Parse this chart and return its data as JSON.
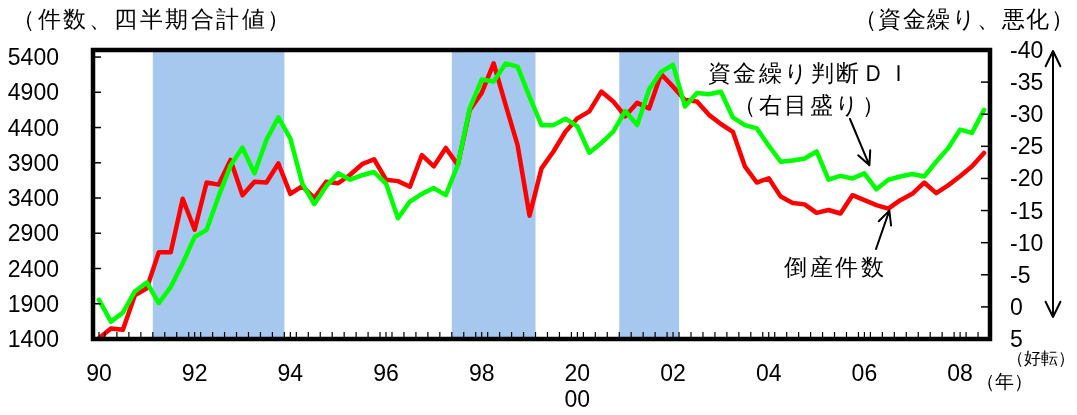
{
  "chart_data": {
    "type": "line",
    "ylabel": "（件数、四半期合計値）",
    "y2label": "（資金繰り、悪化）",
    "xlabel": "（年）",
    "annotations": [
      "（好転）"
    ],
    "x": [
      1990,
      1990.25,
      1990.5,
      1990.75,
      1991,
      1991.25,
      1991.5,
      1991.75,
      1992,
      1992.25,
      1992.5,
      1992.75,
      1993,
      1993.25,
      1993.5,
      1993.75,
      1994,
      1994.25,
      1994.5,
      1994.75,
      1995,
      1995.25,
      1995.5,
      1995.75,
      1996,
      1996.25,
      1996.5,
      1996.75,
      1997,
      1997.25,
      1997.5,
      1997.75,
      1998,
      1998.25,
      1998.5,
      1998.75,
      1999,
      1999.25,
      1999.5,
      1999.75,
      2000,
      2000.25,
      2000.5,
      2000.75,
      2001,
      2001.25,
      2001.5,
      2001.75,
      2002,
      2002.25,
      2002.5,
      2002.75,
      2003,
      2003.25,
      2003.5,
      2003.75,
      2004,
      2004.25,
      2004.5,
      2004.75,
      2005,
      2005.25,
      2005.5,
      2005.75,
      2006,
      2006.25,
      2006.5,
      2006.75,
      2007,
      2007.25,
      2007.5,
      2007.75,
      2008,
      2008.25,
      2008.5
    ],
    "series": [
      {
        "name": "倒産件数",
        "color": "#ff0000",
        "values": [
          1410,
          1550,
          1530,
          2020,
          2120,
          2630,
          2630,
          3390,
          2950,
          3620,
          3590,
          3940,
          3440,
          3630,
          3620,
          3890,
          3460,
          3570,
          3400,
          3630,
          3610,
          3730,
          3880,
          3950,
          3660,
          3640,
          3560,
          4010,
          3850,
          4110,
          3870,
          4650,
          4890,
          5310,
          4720,
          4150,
          3150,
          3820,
          4060,
          4340,
          4530,
          4630,
          4910,
          4770,
          4560,
          4750,
          4670,
          5160,
          4980,
          4790,
          4770,
          4580,
          4450,
          4340,
          3850,
          3620,
          3680,
          3420,
          3330,
          3310,
          3190,
          3230,
          3180,
          3440,
          3370,
          3300,
          3250,
          3370,
          3460,
          3620,
          3470,
          3580,
          3710,
          3850,
          4040
        ]
      },
      {
        "name": "資金繰り判断ＤＩ（右目盛り）",
        "color": "#00ff00",
        "axis": "y2",
        "values": [
          -1.1,
          2.3,
          0.9,
          -2.4,
          -3.8,
          -0.6,
          -3.1,
          -6.8,
          -10.9,
          -12.0,
          -17.2,
          -22.0,
          -24.8,
          -20.8,
          -26.0,
          -29.5,
          -26.2,
          -19.2,
          -16.0,
          -18.8,
          -20.8,
          -19.8,
          -20.5,
          -21.0,
          -19.2,
          -13.8,
          -16.4,
          -17.6,
          -18.5,
          -17.4,
          -22.1,
          -30.9,
          -35.4,
          -35.1,
          -37.9,
          -37.4,
          -32.7,
          -28.3,
          -28.3,
          -29.3,
          -28.1,
          -24.0,
          -25.5,
          -27.3,
          -30.5,
          -28.3,
          -33.9,
          -36.6,
          -37.7,
          -31.2,
          -33.3,
          -33.1,
          -33.5,
          -29.5,
          -28.3,
          -27.8,
          -25.1,
          -22.6,
          -22.8,
          -23.1,
          -24.2,
          -19.8,
          -20.4,
          -20.0,
          -20.8,
          -18.3,
          -19.8,
          -20.3,
          -20.7,
          -20.3,
          -22.6,
          -24.7,
          -27.6,
          -27.1,
          -30.7
        ]
      }
    ],
    "xlim": [
      1989.875,
      2008.625
    ],
    "xticks": [
      {
        "value": 1990,
        "label": "90"
      },
      {
        "value": 1992,
        "label": "92"
      },
      {
        "value": 1994,
        "label": "94"
      },
      {
        "value": 1996,
        "label": "96"
      },
      {
        "value": 1998,
        "label": "98"
      },
      {
        "value": 2000,
        "label": "20\n00"
      },
      {
        "value": 2002,
        "label": "02"
      },
      {
        "value": 2004,
        "label": "04"
      },
      {
        "value": 2006,
        "label": "06"
      },
      {
        "value": 2008,
        "label": "08"
      },
      {
        "value": 1990.125,
        "label": null
      },
      {
        "value": 1990.375,
        "label": null
      },
      {
        "value": 1990.625,
        "label": null
      },
      {
        "value": 1990.875,
        "label": null
      },
      {
        "value": 1991.125,
        "label": null
      },
      {
        "value": 1991.375,
        "label": null
      },
      {
        "value": 1991.625,
        "label": null
      },
      {
        "value": 1991.875,
        "label": null
      },
      {
        "value": 1992.125,
        "label": null
      },
      {
        "value": 1992.375,
        "label": null
      },
      {
        "value": 1992.625,
        "label": null
      },
      {
        "value": 1992.875,
        "label": null
      },
      {
        "value": 1993.125,
        "label": null
      },
      {
        "value": 1993.375,
        "label": null
      },
      {
        "value": 1993.625,
        "label": null
      },
      {
        "value": 1993.875,
        "label": null
      },
      {
        "value": 1994.125,
        "label": null
      },
      {
        "value": 1994.375,
        "label": null
      },
      {
        "value": 1994.625,
        "label": null
      },
      {
        "value": 1994.875,
        "label": null
      },
      {
        "value": 1995.125,
        "label": null
      },
      {
        "value": 1995.375,
        "label": null
      },
      {
        "value": 1995.625,
        "label": null
      },
      {
        "value": 1995.875,
        "label": null
      },
      {
        "value": 1996.125,
        "label": null
      },
      {
        "value": 1996.375,
        "label": null
      },
      {
        "value": 1996.625,
        "label": null
      },
      {
        "value": 1996.875,
        "label": null
      },
      {
        "value": 1997.125,
        "label": null
      },
      {
        "value": 1997.375,
        "label": null
      },
      {
        "value": 1997.625,
        "label": null
      },
      {
        "value": 1997.875,
        "label": null
      },
      {
        "value": 1998.125,
        "label": null
      },
      {
        "value": 1998.375,
        "label": null
      },
      {
        "value": 1998.625,
        "label": null
      },
      {
        "value": 1998.875,
        "label": null
      },
      {
        "value": 1999.125,
        "label": null
      },
      {
        "value": 1999.375,
        "label": null
      },
      {
        "value": 1999.625,
        "label": null
      },
      {
        "value": 1999.875,
        "label": null
      },
      {
        "value": 2000.125,
        "label": null
      },
      {
        "value": 2000.375,
        "label": null
      },
      {
        "value": 2000.625,
        "label": null
      },
      {
        "value": 2000.875,
        "label": null
      },
      {
        "value": 2001.125,
        "label": null
      },
      {
        "value": 2001.375,
        "label": null
      },
      {
        "value": 2001.625,
        "label": null
      },
      {
        "value": 2001.875,
        "label": null
      },
      {
        "value": 2002.125,
        "label": null
      },
      {
        "value": 2002.375,
        "label": null
      },
      {
        "value": 2002.625,
        "label": null
      },
      {
        "value": 2002.875,
        "label": null
      },
      {
        "value": 2003.125,
        "label": null
      },
      {
        "value": 2003.375,
        "label": null
      },
      {
        "value": 2003.625,
        "label": null
      },
      {
        "value": 2003.875,
        "label": null
      },
      {
        "value": 2004.125,
        "label": null
      },
      {
        "value": 2004.375,
        "label": null
      },
      {
        "value": 2004.625,
        "label": null
      },
      {
        "value": 2004.875,
        "label": null
      },
      {
        "value": 2005.125,
        "label": null
      },
      {
        "value": 2005.375,
        "label": null
      },
      {
        "value": 2005.625,
        "label": null
      },
      {
        "value": 2005.875,
        "label": null
      },
      {
        "value": 2006.125,
        "label": null
      },
      {
        "value": 2006.375,
        "label": null
      },
      {
        "value": 2006.625,
        "label": null
      },
      {
        "value": 2006.875,
        "label": null
      },
      {
        "value": 2007.125,
        "label": null
      },
      {
        "value": 2007.375,
        "label": null
      },
      {
        "value": 2007.625,
        "label": null
      },
      {
        "value": 2007.875,
        "label": null
      },
      {
        "value": 2008.125,
        "label": null
      },
      {
        "value": 2008.375,
        "label": null
      }
    ],
    "ylim": [
      1400,
      5500
    ],
    "yticks": [
      1400,
      1900,
      2400,
      2900,
      3400,
      3900,
      4400,
      4900,
      5400
    ],
    "y2lim": [
      5,
      -40
    ],
    "y2ticks": [
      -40,
      -35,
      -30,
      -25,
      -20,
      -15,
      -10,
      -5,
      0,
      5
    ],
    "bands": [
      {
        "axis": "x",
        "from": 1991.125,
        "to": 1993.875,
        "color": "#a6c8ee"
      },
      {
        "axis": "x",
        "from": 1997.375,
        "to": 1999.125,
        "color": "#a6c8ee"
      },
      {
        "axis": "x",
        "from": 2000.875,
        "to": 2002.125,
        "color": "#a6c8ee"
      }
    ]
  }
}
